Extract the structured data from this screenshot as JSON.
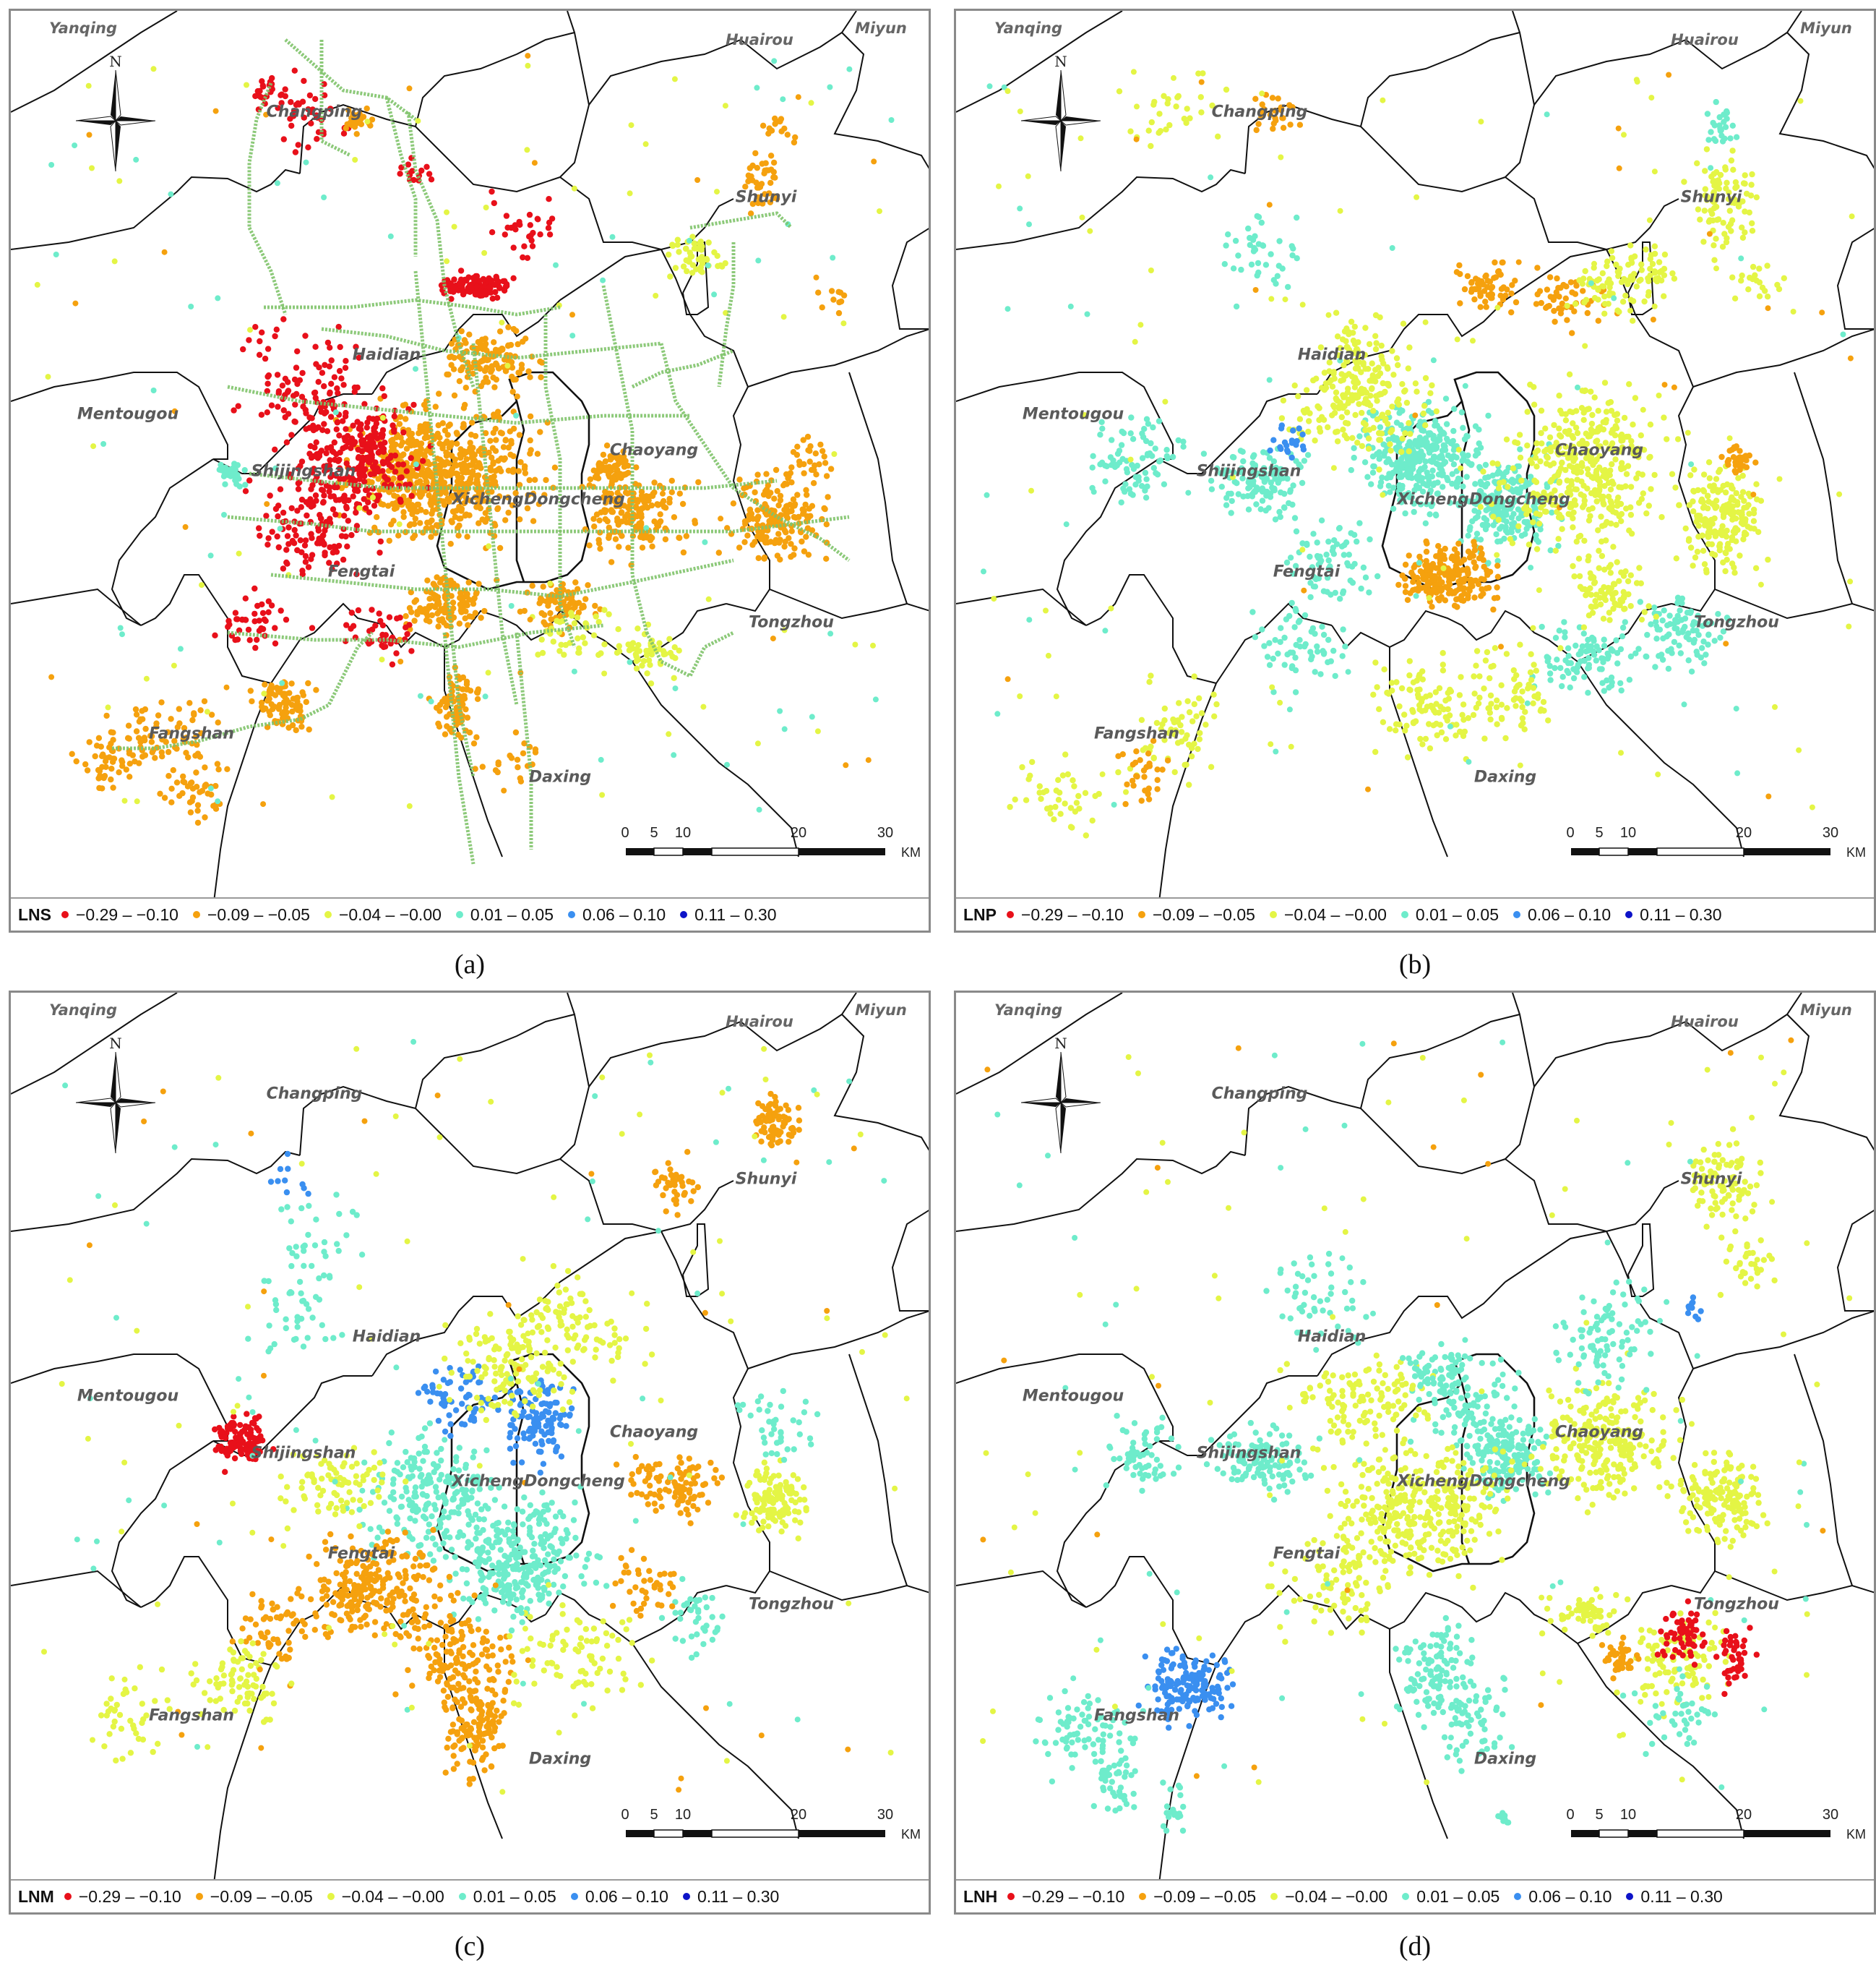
{
  "panels": [
    {
      "id": "a",
      "caption": "(a)",
      "legend_title": "LNS",
      "show_metro": true
    },
    {
      "id": "b",
      "caption": "(b)",
      "legend_title": "LNP",
      "show_metro": false
    },
    {
      "id": "c",
      "caption": "(c)",
      "legend_title": "LNM",
      "show_metro": false
    },
    {
      "id": "d",
      "caption": "(d)",
      "legend_title": "LNH",
      "show_metro": false
    }
  ],
  "legend_classes": [
    {
      "label": "−0.29 – −0.10",
      "color": "#e8101a"
    },
    {
      "label": "−0.09 – −0.05",
      "color": "#f5a10e"
    },
    {
      "label": "−0.04 – −0.00",
      "color": "#e4f545"
    },
    {
      "label": "0.01 – 0.05",
      "color": "#6eeccb"
    },
    {
      "label": "0.06 – 0.10",
      "color": "#3a8ff0"
    },
    {
      "label": "0.11 – 0.30",
      "color": "#0d13c8"
    }
  ],
  "district_labels": [
    "Yanqing",
    "Huairou",
    "Miyun",
    "Changping",
    "Shunyi",
    "Haidian",
    "Mentougou",
    "Chaoyang",
    "Shijingshan",
    "Xicheng",
    "Dongcheng",
    "Fengtai",
    "Tongzhou",
    "Fangshan",
    "Daxing"
  ],
  "north_label": "N",
  "scale_ticks": [
    "0",
    "5",
    "10",
    "20",
    "30"
  ],
  "scale_unit": "KM",
  "metro_color": "#7fc36a",
  "boundary_color": "#111111"
}
